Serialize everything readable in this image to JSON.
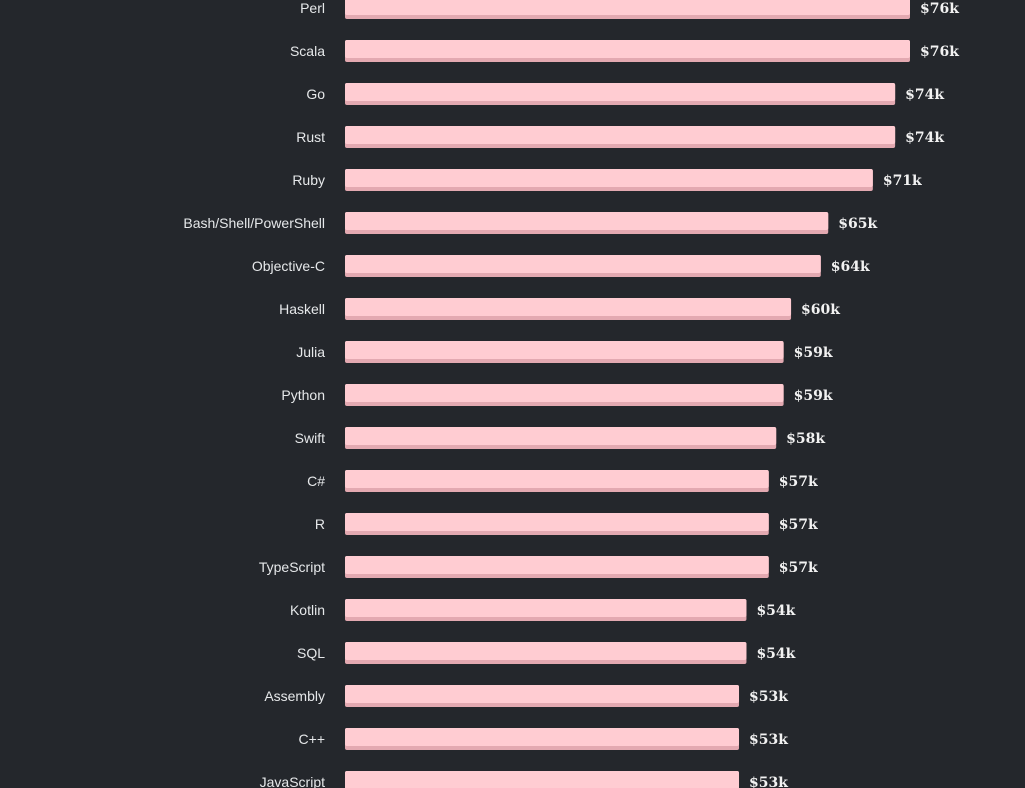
{
  "chart_data": {
    "type": "bar",
    "orientation": "horizontal",
    "title": "",
    "xlabel": "",
    "ylabel": "",
    "categories": [
      "Perl",
      "Scala",
      "Go",
      "Rust",
      "Ruby",
      "Bash/Shell/PowerShell",
      "Objective-C",
      "Haskell",
      "Julia",
      "Python",
      "Swift",
      "C#",
      "R",
      "TypeScript",
      "Kotlin",
      "SQL",
      "Assembly",
      "C++",
      "JavaScript"
    ],
    "values": [
      76,
      76,
      74,
      74,
      71,
      65,
      64,
      60,
      59,
      59,
      58,
      57,
      57,
      57,
      54,
      54,
      53,
      53,
      53
    ],
    "value_labels": [
      "$76k",
      "$76k",
      "$74k",
      "$74k",
      "$71k",
      "$65k",
      "$64k",
      "$60k",
      "$59k",
      "$59k",
      "$58k",
      "$57k",
      "$57k",
      "$57k",
      "$54k",
      "$54k",
      "$53k",
      "$53k",
      "$53k"
    ],
    "unit": "thousand USD",
    "xlim": [
      0,
      76
    ],
    "grid": false,
    "legend": "none",
    "colors": {
      "background": "#24272c",
      "bar": "#ffccd2",
      "bar_shadow": "#e3a9b1",
      "label_text": "#e6e8ea",
      "value_text": "#f2f2f2"
    }
  }
}
